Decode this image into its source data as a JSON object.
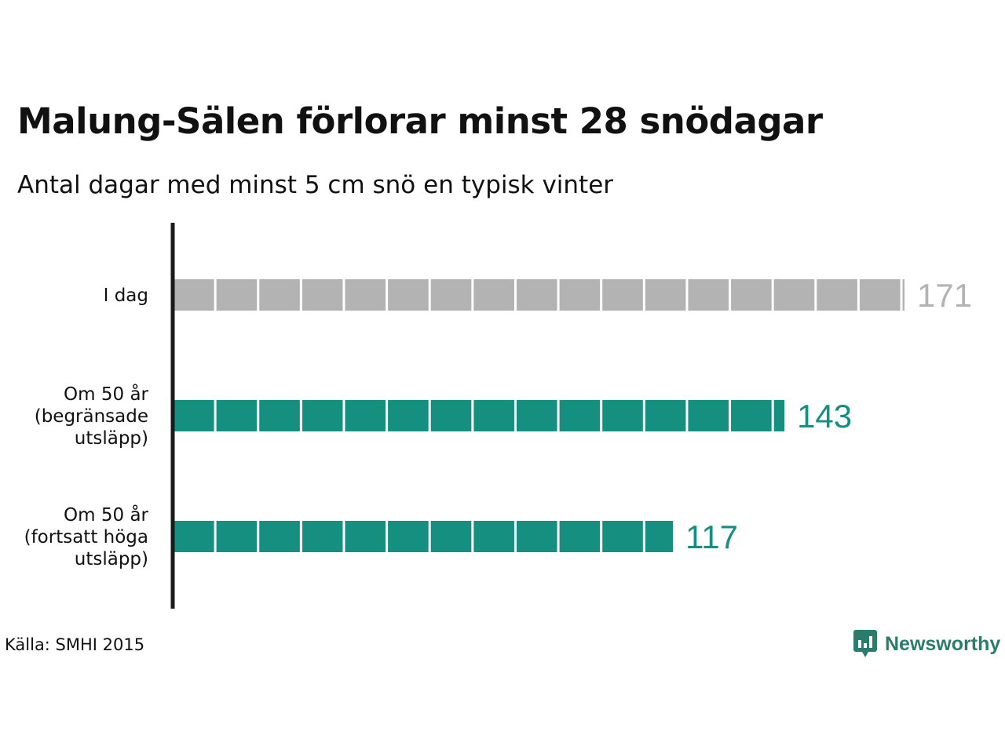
{
  "title": "Malung-Sälen förlorar minst 28 snödagar",
  "subtitle": "Antal dagar med minst 5 cm snö en typisk vinter",
  "source": "Källa: SMHI 2015",
  "brand": {
    "name": "Newsworthy",
    "icon": "newsworthy-logo-icon",
    "color": "#2a7d6c"
  },
  "colors": {
    "today": "#b3b3b3",
    "future": "#148f80",
    "axis": "#1a1a1a"
  },
  "chart_data": {
    "type": "bar",
    "orientation": "horizontal",
    "unit_block_days": 10,
    "categories": [
      {
        "lines": [
          "I dag"
        ]
      },
      {
        "lines": [
          "Om 50 år",
          "(begränsade",
          "utsläpp)"
        ]
      },
      {
        "lines": [
          "Om 50 år",
          "(fortsatt höga",
          "utsläpp)"
        ]
      }
    ],
    "values": [
      171,
      143,
      117
    ],
    "value_labels": [
      "171",
      "143",
      "117"
    ],
    "bar_colors": [
      "#b3b3b3",
      "#148f80",
      "#148f80"
    ],
    "xlim": [
      0,
      171
    ]
  }
}
